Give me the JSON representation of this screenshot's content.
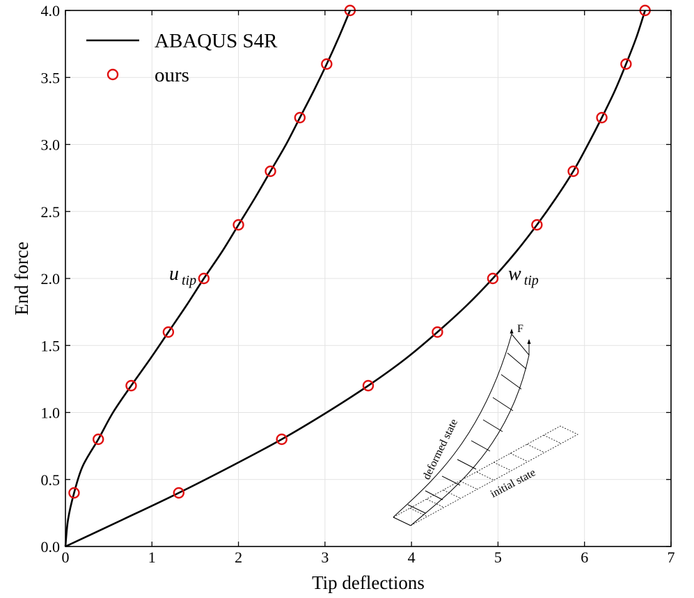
{
  "chart_data": {
    "type": "line",
    "xlabel": "Tip deflections",
    "ylabel": "End force",
    "xlim": [
      0,
      7
    ],
    "ylim": [
      0,
      4
    ],
    "xticks": [
      "0",
      "1",
      "2",
      "3",
      "4",
      "5",
      "6",
      "7"
    ],
    "yticks": [
      "0.0",
      "0.5",
      "1.0",
      "1.5",
      "2.0",
      "2.5",
      "3.0",
      "3.5",
      "4.0"
    ],
    "grid": true,
    "legend_position": "top-left",
    "legend": [
      {
        "label": "ABAQUS S4R",
        "style": "line",
        "color": "#000000"
      },
      {
        "label": "ours",
        "style": "marker",
        "color": "#e01010"
      }
    ],
    "series": [
      {
        "name": "ABAQUS S4R",
        "curve": "u_tip",
        "x": [
          0,
          0.03,
          0.1,
          0.2,
          0.38,
          0.55,
          0.76,
          0.98,
          1.19,
          1.4,
          1.6,
          1.81,
          2.0,
          2.19,
          2.37,
          2.55,
          2.71,
          2.87,
          3.02,
          3.16,
          3.29
        ],
        "y": [
          0,
          0.2,
          0.4,
          0.6,
          0.8,
          1.0,
          1.2,
          1.4,
          1.6,
          1.8,
          2.0,
          2.2,
          2.4,
          2.6,
          2.8,
          3.0,
          3.2,
          3.4,
          3.6,
          3.8,
          4.0
        ]
      },
      {
        "name": "ABAQUS S4R",
        "curve": "w_tip",
        "x": [
          0,
          0.66,
          1.31,
          1.92,
          2.5,
          3.02,
          3.5,
          3.93,
          4.3,
          4.64,
          4.94,
          5.21,
          5.45,
          5.67,
          5.87,
          6.04,
          6.2,
          6.35,
          6.48,
          6.6,
          6.7
        ],
        "y": [
          0,
          0.2,
          0.4,
          0.6,
          0.8,
          1.0,
          1.2,
          1.4,
          1.6,
          1.8,
          2.0,
          2.2,
          2.4,
          2.6,
          2.8,
          3.0,
          3.2,
          3.4,
          3.6,
          3.8,
          4.0
        ]
      },
      {
        "name": "ours",
        "curve": "u_tip",
        "x": [
          0.1,
          0.38,
          0.76,
          1.19,
          1.6,
          2.0,
          2.37,
          2.71,
          3.02,
          3.29
        ],
        "y": [
          0.4,
          0.8,
          1.2,
          1.6,
          2.0,
          2.4,
          2.8,
          3.2,
          3.6,
          4.0
        ]
      },
      {
        "name": "ours",
        "curve": "w_tip",
        "x": [
          1.31,
          2.5,
          3.5,
          4.3,
          4.94,
          5.45,
          5.87,
          6.2,
          6.48,
          6.7
        ],
        "y": [
          0.4,
          0.8,
          1.2,
          1.6,
          2.0,
          2.4,
          2.8,
          3.2,
          3.6,
          4.0
        ]
      }
    ],
    "annotations": {
      "u_main": "u",
      "u_sub": "tip",
      "w_main": "w",
      "w_sub": "tip",
      "force": "F",
      "deformed": "deformed state",
      "initial": "initial state"
    }
  }
}
